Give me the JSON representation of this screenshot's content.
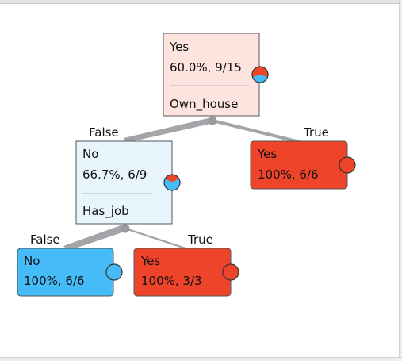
{
  "tree": {
    "root": {
      "label": "Yes",
      "stats": "60.0%, 9/15",
      "split": "Own_house",
      "pie": {
        "red_fraction": 0.6,
        "red": "#ee442a",
        "blue": "#45bbf8"
      },
      "fill": "#fde4de"
    },
    "root_left_edge_label": "False",
    "root_right_edge_label": "True",
    "node_no": {
      "label": "No",
      "stats": "66.7%, 6/9",
      "split": "Has_job",
      "pie": {
        "red_fraction": 0.333,
        "red": "#ee442a",
        "blue": "#45bbf8"
      },
      "fill": "#e8f5fd"
    },
    "leaf_yes_root": {
      "label": "Yes",
      "stats": "100%, 6/6",
      "pie": {
        "red_fraction": 1.0,
        "red": "#ee442a",
        "blue": "#45bbf8"
      },
      "fill": "#ee442a"
    },
    "no_left_edge_label": "False",
    "no_right_edge_label": "True",
    "leaf_no": {
      "label": "No",
      "stats": "100%, 6/6",
      "pie": {
        "red_fraction": 0.0,
        "red": "#ee442a",
        "blue": "#45bbf8"
      },
      "fill": "#45bbf8"
    },
    "leaf_yes_job": {
      "label": "Yes",
      "stats": "100%, 3/3",
      "pie": {
        "red_fraction": 1.0,
        "red": "#ee442a",
        "blue": "#45bbf8"
      },
      "fill": "#ee442a"
    }
  },
  "colors": {
    "edge": "#a5a4a8",
    "separator": "#b5b5b5",
    "junction": "#9a9a9e"
  }
}
